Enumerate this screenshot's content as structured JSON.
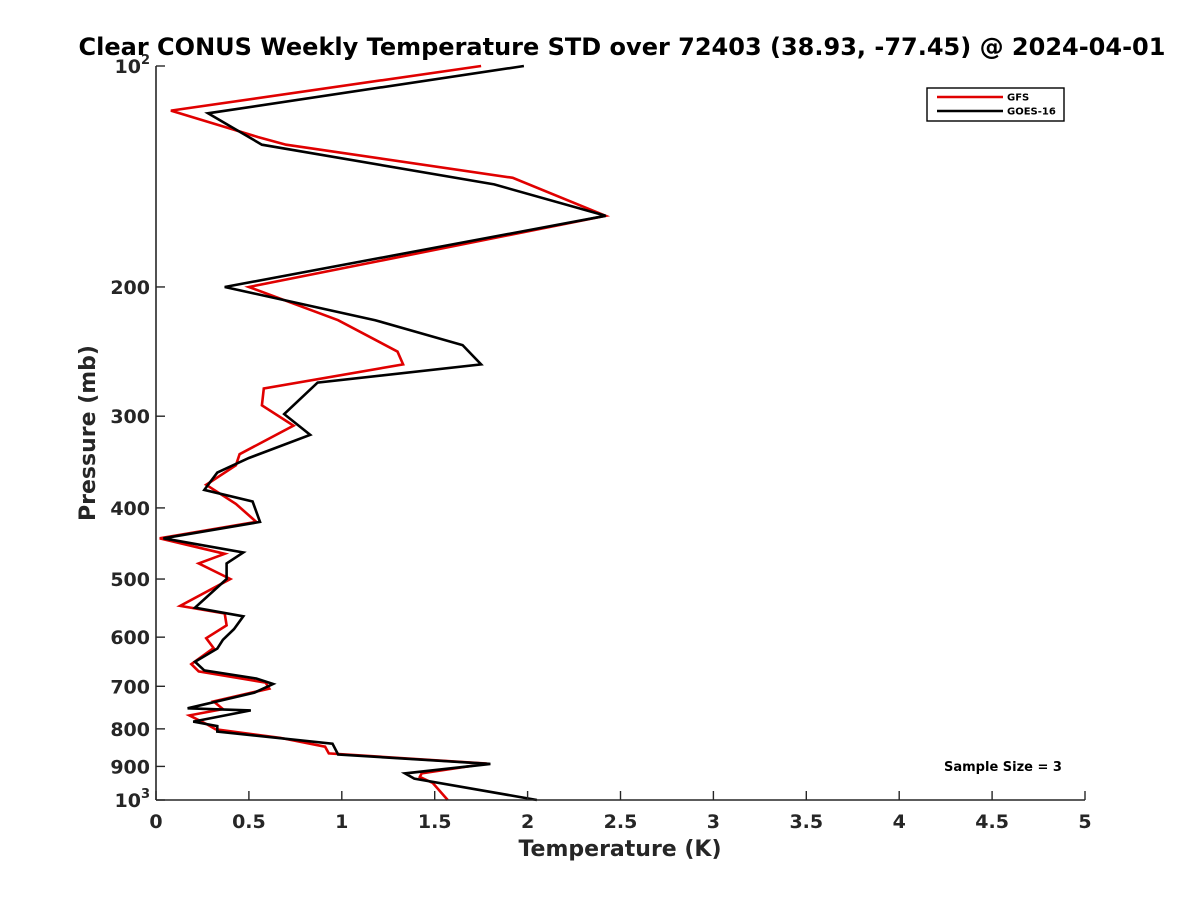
{
  "chart_data": {
    "type": "line",
    "title": "Clear CONUS Weekly Temperature STD over 72403 (38.93, -77.45) @ 2024-04-01",
    "xlabel": "Temperature (K)",
    "ylabel": "Pressure (mb)",
    "xlim": [
      0,
      5
    ],
    "ylim": [
      100,
      1000
    ],
    "yscale": "log",
    "yreversed": true,
    "grid": false,
    "legend_position": "top-right",
    "x_ticks": [
      0,
      0.5,
      1,
      1.5,
      2,
      2.5,
      3,
      3.5,
      4,
      4.5,
      5
    ],
    "x_tick_labels": [
      "0",
      "0.5",
      "1",
      "1.5",
      "2",
      "2.5",
      "3",
      "3.5",
      "4",
      "4.5",
      "5"
    ],
    "y_ticks": [
      {
        "value": 100,
        "label": "10",
        "exp": "2"
      },
      {
        "value": 200,
        "label": "200",
        "exp": ""
      },
      {
        "value": 300,
        "label": "300",
        "exp": ""
      },
      {
        "value": 400,
        "label": "400",
        "exp": ""
      },
      {
        "value": 500,
        "label": "500",
        "exp": ""
      },
      {
        "value": 600,
        "label": "600",
        "exp": ""
      },
      {
        "value": 700,
        "label": "700",
        "exp": ""
      },
      {
        "value": 800,
        "label": "800",
        "exp": ""
      },
      {
        "value": 900,
        "label": "900",
        "exp": ""
      },
      {
        "value": 1000,
        "label": "10",
        "exp": "3"
      }
    ],
    "annotation": "Sample Size = 3",
    "series": [
      {
        "name": "GFS",
        "color": "#e00000",
        "points": [
          [
            1.75,
            100
          ],
          [
            0.08,
            115
          ],
          [
            0.55,
            125
          ],
          [
            0.7,
            128
          ],
          [
            1.92,
            142
          ],
          [
            2.42,
            160
          ],
          [
            0.5,
            200
          ],
          [
            0.98,
            222
          ],
          [
            1.3,
            245
          ],
          [
            1.33,
            255
          ],
          [
            0.58,
            275
          ],
          [
            0.57,
            290
          ],
          [
            0.74,
            309
          ],
          [
            0.45,
            338
          ],
          [
            0.43,
            350
          ],
          [
            0.27,
            372
          ],
          [
            0.43,
            395
          ],
          [
            0.54,
            418
          ],
          [
            0.02,
            440
          ],
          [
            0.37,
            462
          ],
          [
            0.23,
            476
          ],
          [
            0.4,
            500
          ],
          [
            0.13,
            544
          ],
          [
            0.37,
            557
          ],
          [
            0.38,
            578
          ],
          [
            0.27,
            602
          ],
          [
            0.31,
            621
          ],
          [
            0.19,
            653
          ],
          [
            0.23,
            668
          ],
          [
            0.59,
            692
          ],
          [
            0.61,
            705
          ],
          [
            0.31,
            734
          ],
          [
            0.36,
            752
          ],
          [
            0.18,
            767
          ],
          [
            0.28,
            790
          ],
          [
            0.32,
            801
          ],
          [
            0.67,
            823
          ],
          [
            0.91,
            846
          ],
          [
            0.93,
            864
          ],
          [
            1.78,
            892
          ],
          [
            1.43,
            920
          ],
          [
            1.42,
            930
          ],
          [
            1.49,
            948
          ],
          [
            1.57,
            1000
          ]
        ]
      },
      {
        "name": "GOES-16",
        "color": "#000000",
        "points": [
          [
            1.98,
            100
          ],
          [
            0.28,
            116
          ],
          [
            0.57,
            128
          ],
          [
            1.82,
            145
          ],
          [
            2.42,
            160
          ],
          [
            0.37,
            200
          ],
          [
            1.18,
            222
          ],
          [
            1.65,
            240
          ],
          [
            1.75,
            255
          ],
          [
            0.87,
            270
          ],
          [
            0.69,
            298
          ],
          [
            0.83,
            318
          ],
          [
            0.5,
            342
          ],
          [
            0.33,
            358
          ],
          [
            0.26,
            378
          ],
          [
            0.52,
            392
          ],
          [
            0.56,
            418
          ],
          [
            0.04,
            440
          ],
          [
            0.47,
            460
          ],
          [
            0.38,
            476
          ],
          [
            0.38,
            500
          ],
          [
            0.21,
            547
          ],
          [
            0.47,
            562
          ],
          [
            0.42,
            585
          ],
          [
            0.36,
            605
          ],
          [
            0.33,
            622
          ],
          [
            0.21,
            648
          ],
          [
            0.26,
            666
          ],
          [
            0.54,
            683
          ],
          [
            0.63,
            695
          ],
          [
            0.53,
            714
          ],
          [
            0.17,
            750
          ],
          [
            0.51,
            755
          ],
          [
            0.2,
            782
          ],
          [
            0.33,
            793
          ],
          [
            0.33,
            807
          ],
          [
            0.95,
            838
          ],
          [
            0.98,
            867
          ],
          [
            1.8,
            893
          ],
          [
            1.34,
            920
          ],
          [
            1.39,
            935
          ],
          [
            2.05,
            1000
          ]
        ]
      }
    ]
  }
}
